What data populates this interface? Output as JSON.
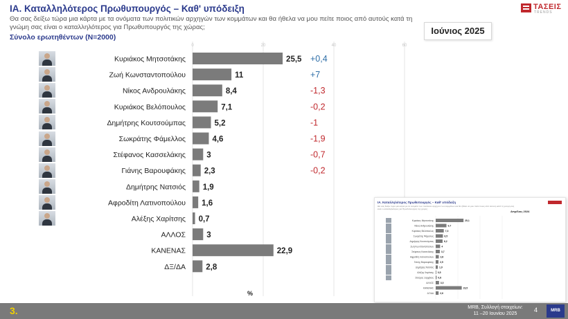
{
  "header": {
    "title": "ΙΑ. Καταλληλότερος  Πρωθυπουργός – Καθ' υπόδειξη",
    "question": "Θα σας δείξω τώρα μια κάρτα με τα ονόματα των πολιτικών αρχηγών των κομμάτων και θα ήθελα να μου πείτε ποιος από αυτούς κατά τη γνώμη σας είναι ο καταλληλότερος για Πρωθυπουργός της χώρας;",
    "base": "Σύνολο ερωτηθέντων (Ν=2000)",
    "month": "Ιούνιος 2025"
  },
  "logo": {
    "name": "ΤΑΣΕΙΣ",
    "sub": "TRENDS"
  },
  "chart_data": {
    "type": "bar",
    "orientation": "horizontal",
    "categories": [
      "Κυριάκος Μητσοτάκης",
      "Ζωή Κωνσταντοπούλου",
      "Νίκος Ανδρουλάκης",
      "Κυριάκος Βελόπουλος",
      "Δημήτρης Κουτσούμπας",
      "Σωκράτης Φάμελλος",
      "Στέφανος Κασσελάκης",
      "Γιάνης Βαρουφάκης",
      "Δημήτρης Νατσιός",
      "Αφροδίτη Λατινοπούλου",
      "Αλέξης Χαρίτσης",
      "ΑΛΛΟΣ",
      "ΚΑΝΕΝΑΣ",
      "ΔΞ/ΔΑ"
    ],
    "values": [
      25.5,
      11,
      8.4,
      7.1,
      5.2,
      4.6,
      3,
      2.3,
      1.9,
      1.6,
      0.7,
      3,
      22.9,
      2.8
    ],
    "value_labels": [
      "25,5",
      "11",
      "8,4",
      "7,1",
      "5,2",
      "4,6",
      "3",
      "2,3",
      "1,9",
      "1,6",
      "0,7",
      "3",
      "22,9",
      "2,8"
    ],
    "changes": [
      {
        "label": "+0,4",
        "direction": "up"
      },
      {
        "label": "+7",
        "direction": "up"
      },
      {
        "label": "-1,3",
        "direction": "down"
      },
      {
        "label": "-0,2",
        "direction": "down"
      },
      {
        "label": "-1",
        "direction": "down"
      },
      {
        "label": "-1,9",
        "direction": "down"
      },
      {
        "label": "-0,7",
        "direction": "down"
      },
      {
        "label": "-0,2",
        "direction": "down"
      }
    ],
    "xlim": [
      0,
      60
    ],
    "ticks": [
      0,
      20,
      40,
      60
    ],
    "unit": "%",
    "grid": true,
    "bar_color": "#7b7b7b",
    "positive_color": "#2f6fa8",
    "negative_color": "#c0282d"
  },
  "inset": {
    "title": "ΙΑ. Καταλληλότερος Πρωθυπουργός – Καθ' υπόδειξη",
    "question": "Θα σας δείξω τώρα μια κάρτα με τα ονόματα των πολιτικών αρχηγών των κομμάτων και θα ήθελα να μου πείτε ποιος από αυτούς κατά τη γνώμη σας είναι ο καταλληλότερος για Πρωθυπουργός της χώρας;",
    "base": "Σύνολο ερωτηθέντων (Ν=2000)",
    "month": "Απρίλιος 2024",
    "chart_data": {
      "type": "bar",
      "orientation": "horizontal",
      "categories": [
        "Κυριάκος Μητσοτάκης",
        "Νίκος Ανδρουλάκης",
        "Κυριάκος Βελόπουλος",
        "Σωκράτης Φάμελλος",
        "Δημήτρης Κουτσούμπας",
        "Ζωή Κωνσταντοπούλου",
        "Στέφανος Κασσελάκης",
        "Αφροδίτη Λατινοπούλου",
        "Γιάνης Βαρουφάκης",
        "Δημήτρης Νατσιός",
        "Αλέξης Χαρίτσης",
        "Σταύρος Ξαρχάκος",
        "ΑΛΛΟΣ",
        "ΚΑΝΕΝΑΣ",
        "ΔΞ/ΔΑ"
      ],
      "values": [
        25.1,
        9.7,
        7.3,
        6.5,
        6.2,
        4,
        3.7,
        2.8,
        2.5,
        1.9,
        0.5,
        0.8,
        3.0,
        23.5,
        2.6
      ],
      "value_labels": [
        "25,1",
        "9,7",
        "7,3",
        "6,5",
        "6,2",
        "4",
        "3,7",
        "2,8",
        "2,5",
        "1,9",
        "0,5",
        "0,8",
        "3,0",
        "23,5",
        "2,6"
      ],
      "xlim": [
        0,
        60
      ]
    }
  },
  "footer": {
    "section": "3.",
    "source_line1": "MRB, Συλλογή στοιχείων:",
    "source_line2": "11 –20 Ιουνίου 2025",
    "page": "4",
    "logo": "MRB"
  }
}
